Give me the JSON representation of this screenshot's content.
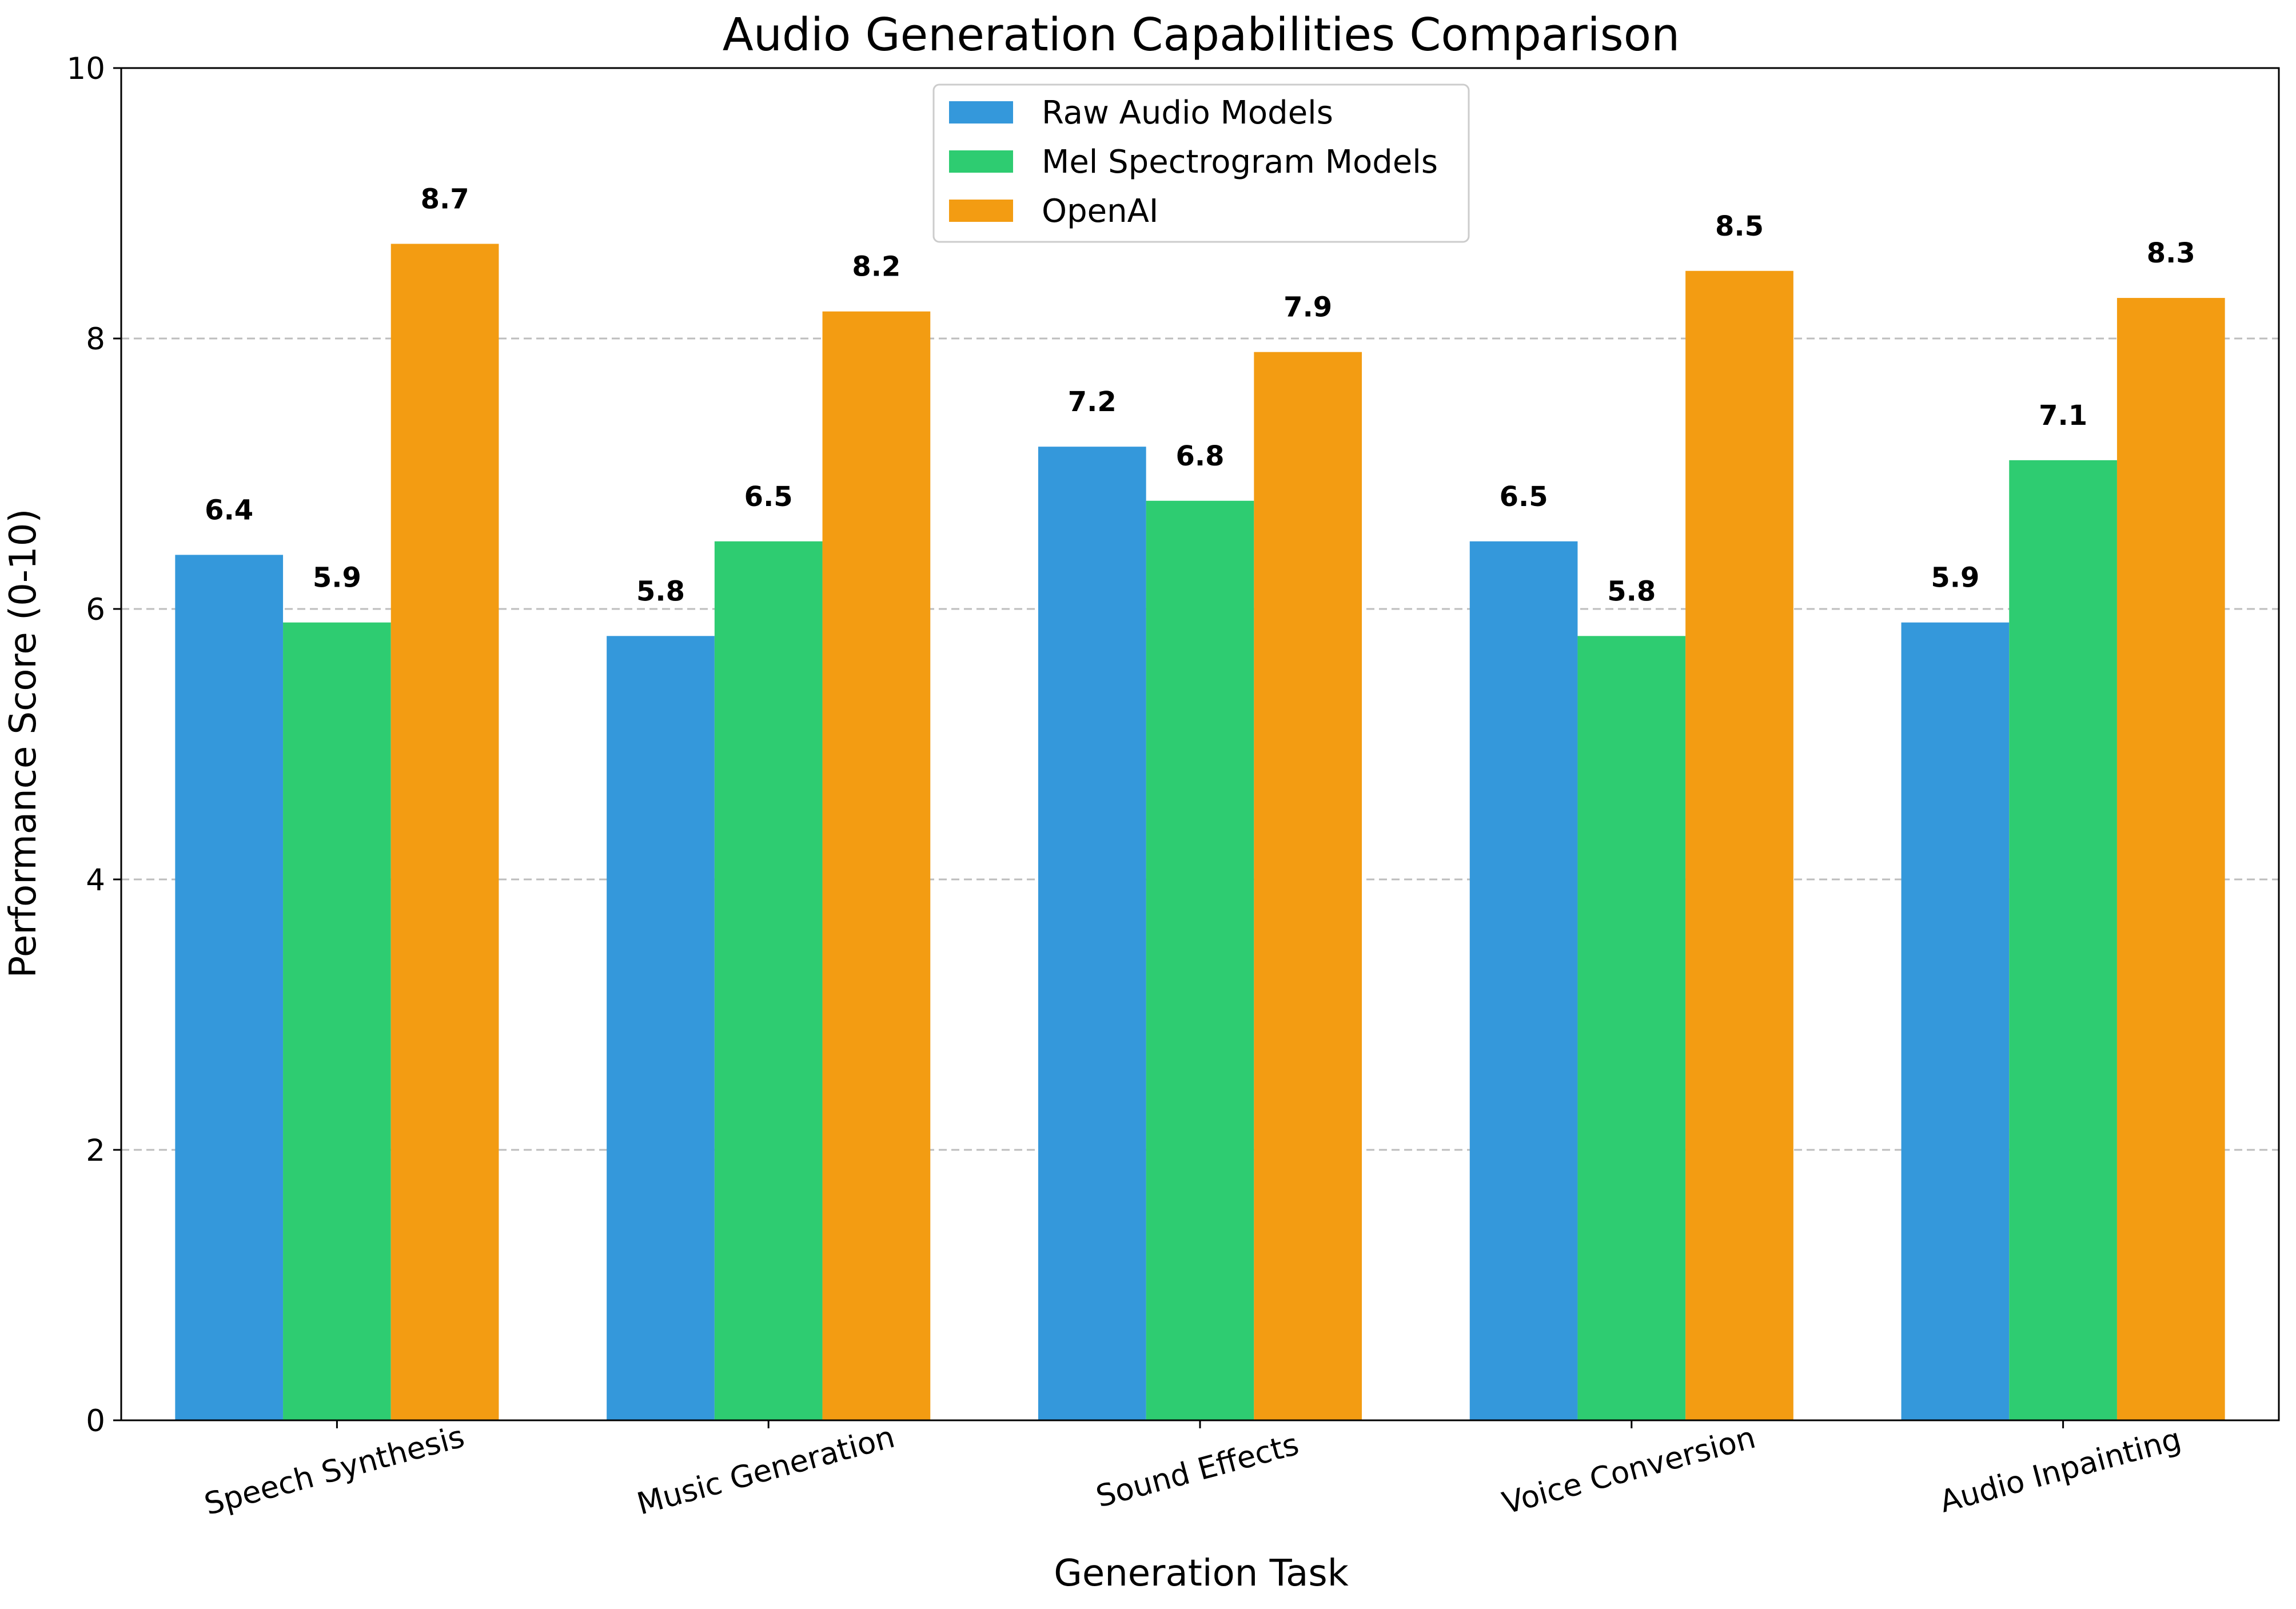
{
  "chart_data": {
    "type": "bar",
    "title": "Audio Generation Capabilities Comparison",
    "xlabel": "Generation Task",
    "ylabel": "Performance Score (0-10)",
    "ylim": [
      0,
      10
    ],
    "yticks": [
      0,
      2,
      4,
      6,
      8,
      10
    ],
    "categories": [
      "Speech Synthesis",
      "Music Generation",
      "Sound Effects",
      "Voice Conversion",
      "Audio Inpainting"
    ],
    "series": [
      {
        "name": "Raw Audio Models",
        "color": "#3498db",
        "values": [
          6.4,
          5.8,
          7.2,
          6.5,
          5.9
        ]
      },
      {
        "name": "Mel Spectrogram Models",
        "color": "#2ecc71",
        "values": [
          5.9,
          6.5,
          6.8,
          5.8,
          7.1
        ]
      },
      {
        "name": "OpenAI",
        "color": "#f39c12",
        "values": [
          8.7,
          8.2,
          7.9,
          8.5,
          8.3
        ]
      }
    ],
    "grid": "y-dashed",
    "legend_position": "top-center",
    "tick_rotation_deg": -15,
    "value_labels": true
  }
}
